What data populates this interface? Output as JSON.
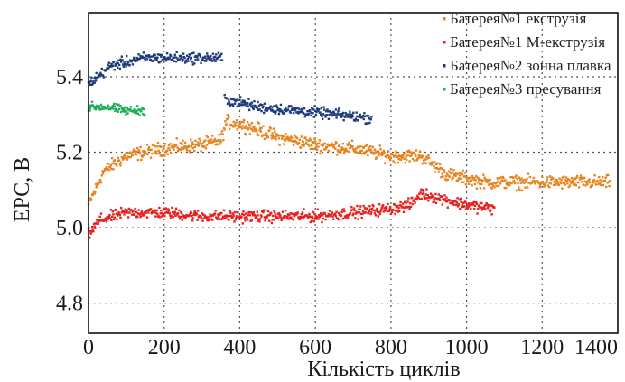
{
  "chart_data": {
    "type": "scatter",
    "xlabel": "Кількість циклів",
    "ylabel": "ЕРС, В",
    "xlim": [
      0,
      1400
    ],
    "ylim": [
      4.72,
      5.57
    ],
    "x_ticks": [
      0,
      200,
      400,
      600,
      800,
      1000,
      1200,
      1400
    ],
    "y_ticks": [
      4.8,
      5.0,
      5.2,
      5.4
    ],
    "y_tick_labels": [
      "4.8",
      "5.0",
      "5.2",
      "5.4"
    ],
    "grid": true,
    "legend_position": "top-right",
    "series": [
      {
        "name": "Батерея№1 екструзія",
        "color": "#e8841e",
        "x_range": [
          0,
          1380
        ],
        "profile": [
          [
            0,
            5.06
          ],
          [
            40,
            5.15
          ],
          [
            100,
            5.19
          ],
          [
            200,
            5.21
          ],
          [
            300,
            5.22
          ],
          [
            350,
            5.23
          ],
          [
            365,
            5.28
          ],
          [
            420,
            5.27
          ],
          [
            500,
            5.24
          ],
          [
            600,
            5.22
          ],
          [
            700,
            5.21
          ],
          [
            800,
            5.19
          ],
          [
            880,
            5.19
          ],
          [
            950,
            5.14
          ],
          [
            1050,
            5.12
          ],
          [
            1150,
            5.12
          ],
          [
            1250,
            5.12
          ],
          [
            1380,
            5.12
          ]
        ],
        "noise": 0.015
      },
      {
        "name": "Батерея№1 М-екструзія",
        "color": "#e8201e",
        "x_range": [
          0,
          1075
        ],
        "profile": [
          [
            0,
            4.98
          ],
          [
            30,
            5.02
          ],
          [
            100,
            5.04
          ],
          [
            200,
            5.04
          ],
          [
            300,
            5.03
          ],
          [
            400,
            5.03
          ],
          [
            500,
            5.03
          ],
          [
            600,
            5.03
          ],
          [
            700,
            5.04
          ],
          [
            800,
            5.05
          ],
          [
            850,
            5.06
          ],
          [
            880,
            5.09
          ],
          [
            920,
            5.08
          ],
          [
            1000,
            5.06
          ],
          [
            1075,
            5.05
          ]
        ],
        "noise": 0.013
      },
      {
        "name": "Батерея№2 зонна плавка",
        "color": "#1f3b7a",
        "x_range": [
          0,
          750
        ],
        "segments": [
          {
            "x_range": [
              0,
              355
            ],
            "profile": [
              [
                0,
                5.38
              ],
              [
                60,
                5.43
              ],
              [
                150,
                5.45
              ],
              [
                250,
                5.45
              ],
              [
                355,
                5.45
              ]
            ]
          },
          {
            "x_range": [
              360,
              750
            ],
            "profile": [
              [
                360,
                5.34
              ],
              [
                450,
                5.32
              ],
              [
                550,
                5.31
              ],
              [
                650,
                5.3
              ],
              [
                750,
                5.29
              ]
            ]
          }
        ],
        "noise": 0.012
      },
      {
        "name": "Батерея№3 пресування",
        "color": "#1fae5a",
        "x_range": [
          0,
          150
        ],
        "profile": [
          [
            0,
            5.32
          ],
          [
            50,
            5.32
          ],
          [
            100,
            5.31
          ],
          [
            150,
            5.31
          ]
        ],
        "noise": 0.01
      }
    ]
  }
}
